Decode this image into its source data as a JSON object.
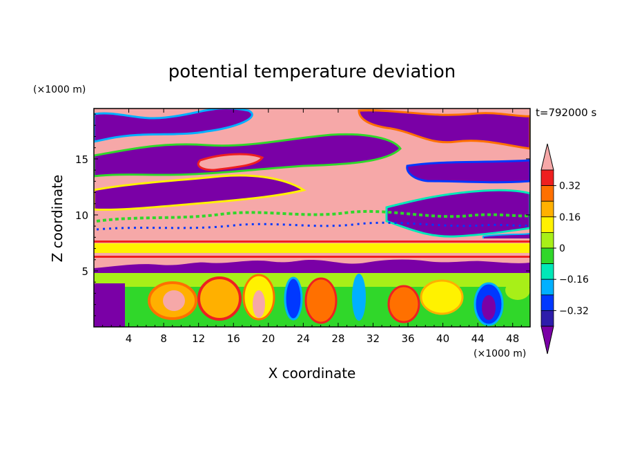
{
  "chart_data": {
    "type": "heatmap",
    "title": "potential temperature deviation",
    "xlabel": "X coordinate",
    "ylabel": "Z coordinate",
    "x_unit": "(×1000 m)",
    "y_unit": "(×1000 m)",
    "time_label": "t=792000 s",
    "xlim": [
      0,
      50
    ],
    "ylim": [
      0,
      19.5
    ],
    "x_ticks": [
      4,
      8,
      12,
      16,
      20,
      24,
      28,
      32,
      36,
      40,
      44,
      48
    ],
    "y_ticks": [
      5,
      10,
      15
    ],
    "colorbar": {
      "levels": [
        -0.4,
        -0.32,
        -0.24,
        -0.16,
        -0.08,
        0,
        0.08,
        0.16,
        0.24,
        0.32,
        0.4
      ],
      "tick_labels": [
        "0.32",
        "0.16",
        "0",
        "−0.16",
        "−0.32"
      ],
      "tick_values": [
        0.32,
        0.16,
        0,
        -0.16,
        -0.32
      ],
      "colors": [
        "#7a00a6",
        "#2d1dab",
        "#0038ff",
        "#00b0ff",
        "#00e8b8",
        "#30d72a",
        "#a8ef18",
        "#fff200",
        "#ffb000",
        "#ff7000",
        "#ee2020",
        "#f6a8a8"
      ]
    },
    "bands": [
      {
        "z": [
          0,
          5
        ],
        "level": "mixed, alternating positive and negative",
        "value": 0.08
      },
      {
        "z": [
          4.5,
          6
        ],
        "level": "strong negative",
        "value": -0.4
      },
      {
        "z": [
          6,
          8.2
        ],
        "level": "strong positive with thin yellow-orange stripes",
        "value": 0.4
      },
      {
        "z": [
          8.2,
          19.5
        ],
        "level": "large alternating strong positive and strong negative layers",
        "value": 0
      }
    ]
  }
}
